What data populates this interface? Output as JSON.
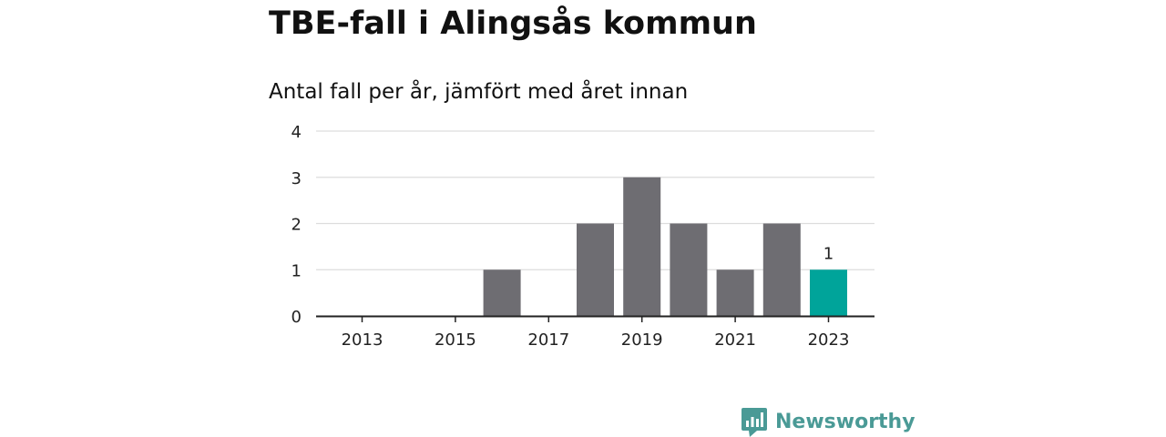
{
  "header": {
    "title": "TBE-fall i Alingsås kommun",
    "subtitle": "Antal fall per år, jämfört med året innan"
  },
  "brand": {
    "name": "Newsworthy",
    "icon": "newsworthy-logo-icon",
    "color": "#4a9a96"
  },
  "chart_data": {
    "type": "bar",
    "title": "TBE-fall i Alingsås kommun",
    "subtitle": "Antal fall per år, jämfört med året innan",
    "categories": [
      "2013",
      "2014",
      "2015",
      "2016",
      "2017",
      "2018",
      "2019",
      "2020",
      "2021",
      "2022",
      "2023"
    ],
    "values": [
      0,
      0,
      0,
      1,
      0,
      2,
      3,
      2,
      1,
      2,
      1
    ],
    "x_tick_labels": [
      "2013",
      "2015",
      "2017",
      "2019",
      "2021",
      "2023"
    ],
    "y_tick_labels": [
      "0",
      "1",
      "2",
      "3",
      "4"
    ],
    "ylim": [
      0,
      4
    ],
    "xlabel": "",
    "ylabel": "",
    "grid": true,
    "highlight": {
      "category": "2023",
      "label": "1"
    },
    "colors": {
      "bar": "#6e6d72",
      "highlight": "#00a49a",
      "grid": "#dddddd",
      "axis": "#222222"
    }
  }
}
